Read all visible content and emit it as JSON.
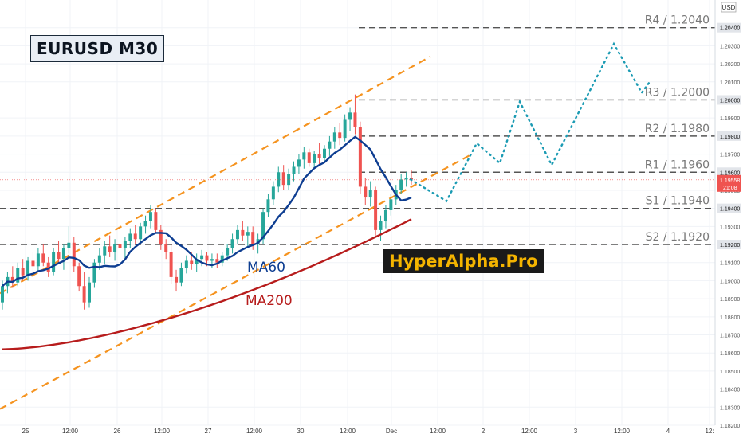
{
  "symbol_title": "EURUSD M30",
  "brand": "HyperAlpha.Pro",
  "currency": "USD",
  "colors": {
    "up": "#26a69a",
    "down": "#ef5350",
    "ma60": "#0d3d91",
    "ma200": "#b71c1c",
    "channel": "#f5931f",
    "levels": "#555555",
    "projection": "#1b9bb3",
    "price_tag": "#ef5350"
  },
  "chart_data": {
    "type": "candlestick",
    "y_axis": {
      "min": 1.182,
      "max": 1.205,
      "position": "right",
      "ticks": [
        "1.18200",
        "1.18300",
        "1.18400",
        "1.18500",
        "1.18600",
        "1.18700",
        "1.18800",
        "1.18900",
        "1.19000",
        "1.19100",
        "1.19200",
        "1.19300",
        "1.19400",
        "1.19500",
        "1.19600",
        "1.19700",
        "1.19800",
        "1.19900",
        "1.20000",
        "1.20100",
        "1.20200",
        "1.20300",
        "1.20400"
      ]
    },
    "x_axis": {
      "ticks": [
        "25",
        "12:00",
        "26",
        "12:00",
        "27",
        "12:00",
        "30",
        "12:00",
        "Dec",
        "12:00",
        "2",
        "12:00",
        "3",
        "12:00",
        "4",
        "12:"
      ]
    },
    "grid": true,
    "current_price": "1.19558",
    "countdown": "21:08",
    "levels": [
      {
        "label": "R4 / 1.2040",
        "value": 1.204,
        "tag": "1.20400"
      },
      {
        "label": "R3 / 1.2000",
        "value": 1.2,
        "tag": "1.20000"
      },
      {
        "label": "R2 / 1.1980",
        "value": 1.198,
        "tag": "1.19800"
      },
      {
        "label": "R1 / 1.1960",
        "value": 1.196,
        "tag": "1.19600"
      },
      {
        "label": "S1 / 1.1940",
        "value": 1.194,
        "tag": "1.19400"
      },
      {
        "label": "S2 / 1.1920",
        "value": 1.192,
        "tag": "1.19200"
      }
    ],
    "ohlc": [
      [
        1.1888,
        1.19,
        1.1884,
        1.1897
      ],
      [
        1.1897,
        1.1905,
        1.1893,
        1.1902
      ],
      [
        1.1902,
        1.1908,
        1.1896,
        1.1899
      ],
      [
        1.1899,
        1.191,
        1.1897,
        1.1907
      ],
      [
        1.1907,
        1.1912,
        1.19,
        1.1903
      ],
      [
        1.1903,
        1.1913,
        1.19,
        1.1911
      ],
      [
        1.1911,
        1.1916,
        1.1905,
        1.1908
      ],
      [
        1.1908,
        1.1918,
        1.1905,
        1.1915
      ],
      [
        1.1915,
        1.192,
        1.1908,
        1.191
      ],
      [
        1.191,
        1.1913,
        1.1902,
        1.1905
      ],
      [
        1.1905,
        1.1918,
        1.1903,
        1.1916
      ],
      [
        1.1916,
        1.1922,
        1.191,
        1.1912
      ],
      [
        1.1912,
        1.192,
        1.1906,
        1.1918
      ],
      [
        1.1918,
        1.193,
        1.1915,
        1.1921
      ],
      [
        1.1921,
        1.1924,
        1.1905,
        1.1908
      ],
      [
        1.1908,
        1.191,
        1.1894,
        1.1897
      ],
      [
        1.1897,
        1.1905,
        1.1884,
        1.1888
      ],
      [
        1.1888,
        1.1902,
        1.1885,
        1.1899
      ],
      [
        1.1899,
        1.1912,
        1.1896,
        1.191
      ],
      [
        1.191,
        1.1918,
        1.1906,
        1.1914
      ],
      [
        1.1914,
        1.1922,
        1.1909,
        1.1919
      ],
      [
        1.1919,
        1.1925,
        1.1913,
        1.1916
      ],
      [
        1.1916,
        1.1923,
        1.1911,
        1.192
      ],
      [
        1.192,
        1.1926,
        1.1915,
        1.1918
      ],
      [
        1.1918,
        1.1924,
        1.1912,
        1.1922
      ],
      [
        1.1922,
        1.1929,
        1.1918,
        1.1926
      ],
      [
        1.1926,
        1.1931,
        1.192,
        1.1923
      ],
      [
        1.1923,
        1.1932,
        1.192,
        1.193
      ],
      [
        1.193,
        1.1936,
        1.1926,
        1.1933
      ],
      [
        1.1933,
        1.1942,
        1.1929,
        1.1938
      ],
      [
        1.1938,
        1.194,
        1.1926,
        1.1928
      ],
      [
        1.1928,
        1.1931,
        1.1917,
        1.192
      ],
      [
        1.192,
        1.1923,
        1.1912,
        1.1916
      ],
      [
        1.1916,
        1.192,
        1.1898,
        1.1902
      ],
      [
        1.1902,
        1.1906,
        1.1894,
        1.1899
      ],
      [
        1.1899,
        1.191,
        1.1897,
        1.1907
      ],
      [
        1.1907,
        1.1914,
        1.1904,
        1.1911
      ],
      [
        1.1911,
        1.1916,
        1.1906,
        1.1909
      ],
      [
        1.1909,
        1.1915,
        1.1905,
        1.1912
      ],
      [
        1.1912,
        1.1917,
        1.1908,
        1.1914
      ],
      [
        1.1914,
        1.1916,
        1.1908,
        1.1911
      ],
      [
        1.1911,
        1.1915,
        1.1907,
        1.1912
      ],
      [
        1.1912,
        1.1915,
        1.1907,
        1.191
      ],
      [
        1.191,
        1.1916,
        1.1908,
        1.1914
      ],
      [
        1.1914,
        1.192,
        1.1911,
        1.1918
      ],
      [
        1.1918,
        1.1926,
        1.1915,
        1.1923
      ],
      [
        1.1923,
        1.1931,
        1.192,
        1.1928
      ],
      [
        1.1928,
        1.1933,
        1.1922,
        1.1925
      ],
      [
        1.1925,
        1.193,
        1.1919,
        1.1927
      ],
      [
        1.1927,
        1.193,
        1.1917,
        1.192
      ],
      [
        1.192,
        1.1926,
        1.1915,
        1.1923
      ],
      [
        1.1923,
        1.194,
        1.192,
        1.1938
      ],
      [
        1.1938,
        1.1948,
        1.1935,
        1.1945
      ],
      [
        1.1945,
        1.1955,
        1.1942,
        1.1952
      ],
      [
        1.1952,
        1.1963,
        1.1949,
        1.196
      ],
      [
        1.196,
        1.1964,
        1.195,
        1.1953
      ],
      [
        1.1953,
        1.1962,
        1.195,
        1.1959
      ],
      [
        1.1959,
        1.1966,
        1.1955,
        1.1963
      ],
      [
        1.1963,
        1.197,
        1.1959,
        1.1967
      ],
      [
        1.1967,
        1.1974,
        1.1962,
        1.1971
      ],
      [
        1.1971,
        1.1973,
        1.1963,
        1.1965
      ],
      [
        1.1965,
        1.1972,
        1.1962,
        1.197
      ],
      [
        1.197,
        1.1976,
        1.1964,
        1.1968
      ],
      [
        1.1968,
        1.1975,
        1.1965,
        1.1973
      ],
      [
        1.1973,
        1.198,
        1.1969,
        1.1977
      ],
      [
        1.1977,
        1.1985,
        1.1973,
        1.1982
      ],
      [
        1.1982,
        1.1987,
        1.1975,
        1.1979
      ],
      [
        1.1979,
        1.1992,
        1.1977,
        1.1989
      ],
      [
        1.1989,
        1.1996,
        1.1983,
        1.1993
      ],
      [
        1.1993,
        1.2003,
        1.1981,
        1.1985
      ],
      [
        1.1985,
        1.1988,
        1.1948,
        1.1952
      ],
      [
        1.1952,
        1.1957,
        1.1942,
        1.1946
      ],
      [
        1.1946,
        1.1955,
        1.1941,
        1.195
      ],
      [
        1.195,
        1.1952,
        1.1925,
        1.1928
      ],
      [
        1.1928,
        1.1936,
        1.1922,
        1.1933
      ],
      [
        1.1933,
        1.1942,
        1.1929,
        1.1939
      ],
      [
        1.1939,
        1.1948,
        1.1936,
        1.1945
      ],
      [
        1.1945,
        1.1953,
        1.1942,
        1.195
      ],
      [
        1.195,
        1.1959,
        1.1948,
        1.1956
      ],
      [
        1.1956,
        1.196,
        1.1952,
        1.1957
      ],
      [
        1.1957,
        1.1961,
        1.1953,
        1.1956
      ]
    ],
    "annotations": {
      "ma60_label": "MA60",
      "ma200_label": "MA200"
    }
  }
}
